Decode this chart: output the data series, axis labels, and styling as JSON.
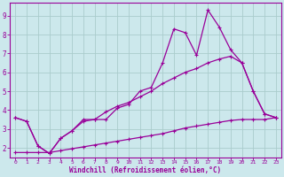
{
  "xlabel": "Windchill (Refroidissement éolien,°C)",
  "bg_color": "#cce8ec",
  "grid_color": "#aacccc",
  "line_color": "#990099",
  "spine_color": "#7700aa",
  "xlim": [
    -0.5,
    23.5
  ],
  "ylim": [
    1.5,
    9.7
  ],
  "xticks": [
    0,
    1,
    2,
    3,
    4,
    5,
    6,
    7,
    8,
    9,
    10,
    11,
    12,
    13,
    14,
    15,
    16,
    17,
    18,
    19,
    20,
    21,
    22,
    23
  ],
  "yticks": [
    2,
    3,
    4,
    5,
    6,
    7,
    8,
    9
  ],
  "line1_x": [
    0,
    1,
    2,
    3,
    4,
    5,
    6,
    7,
    8,
    9,
    10,
    11,
    12,
    13,
    14,
    15,
    16,
    17,
    18,
    19,
    20,
    21,
    22,
    23
  ],
  "line1_y": [
    3.6,
    3.4,
    2.1,
    1.7,
    2.5,
    2.9,
    3.5,
    3.5,
    3.5,
    4.1,
    4.3,
    5.0,
    5.2,
    6.5,
    8.3,
    8.1,
    6.9,
    9.3,
    8.4,
    7.2,
    6.5,
    5.0,
    3.8,
    3.6
  ],
  "line2_x": [
    0,
    1,
    2,
    3,
    4,
    5,
    6,
    7,
    8,
    9,
    10,
    11,
    12,
    13,
    14,
    15,
    16,
    17,
    18,
    19,
    20,
    21,
    22,
    23
  ],
  "line2_y": [
    3.6,
    3.4,
    2.1,
    1.7,
    2.5,
    2.9,
    3.4,
    3.5,
    3.9,
    4.2,
    4.4,
    4.7,
    5.0,
    5.4,
    5.7,
    6.0,
    6.2,
    6.5,
    6.7,
    6.85,
    6.5,
    5.0,
    3.8,
    3.6
  ],
  "line3_x": [
    0,
    1,
    2,
    3,
    4,
    5,
    6,
    7,
    8,
    9,
    10,
    11,
    12,
    13,
    14,
    15,
    16,
    17,
    18,
    19,
    20,
    21,
    22,
    23
  ],
  "line3_y": [
    1.75,
    1.75,
    1.75,
    1.75,
    1.85,
    1.95,
    2.05,
    2.15,
    2.25,
    2.35,
    2.45,
    2.55,
    2.65,
    2.75,
    2.9,
    3.05,
    3.15,
    3.25,
    3.35,
    3.45,
    3.5,
    3.5,
    3.5,
    3.6
  ]
}
